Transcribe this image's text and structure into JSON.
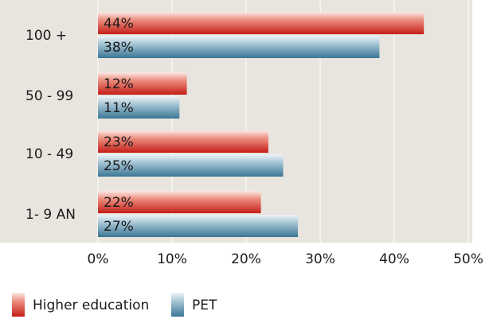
{
  "chart_data": {
    "type": "bar",
    "orientation": "horizontal",
    "categories": [
      "100 +",
      "50 - 99",
      "10 - 49",
      "1- 9 AN"
    ],
    "series": [
      {
        "name": "Higher education",
        "values": [
          44,
          12,
          23,
          22
        ],
        "labels": [
          "44%",
          "12%",
          "23%",
          "22%"
        ],
        "color": "#c8231b"
      },
      {
        "name": "PET",
        "values": [
          38,
          11,
          25,
          27
        ],
        "labels": [
          "38%",
          "11%",
          "25%",
          "27%"
        ],
        "color": "#3d7a99"
      }
    ],
    "xlim": [
      0,
      50
    ],
    "xticks": [
      0,
      10,
      20,
      30,
      40,
      50
    ],
    "xtick_labels": [
      "0%",
      "10%",
      "20%",
      "30%",
      "40%",
      "50%"
    ],
    "title": "",
    "xlabel": "",
    "ylabel": "",
    "grid": true,
    "background": "#e8e4de",
    "legend_position": "bottom-left"
  }
}
